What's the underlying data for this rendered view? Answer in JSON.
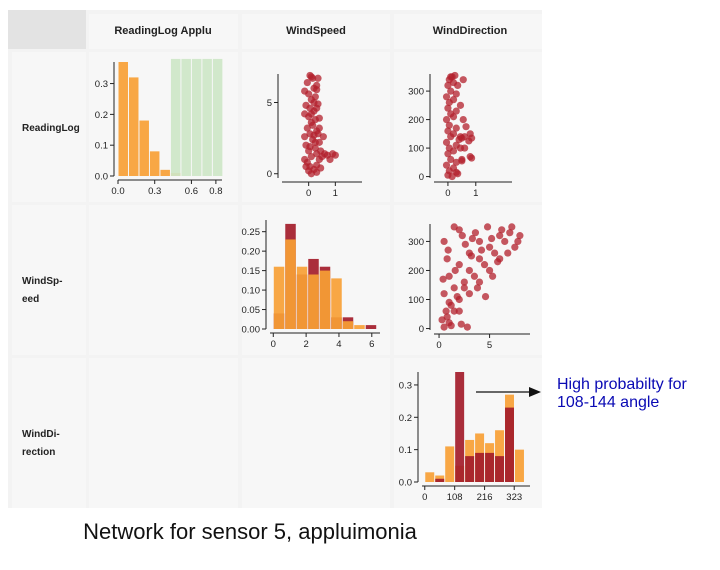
{
  "headers": {
    "columns": [
      "ReadingLog Applu",
      "WindSpeed",
      "WindDirection"
    ],
    "rows": [
      {
        "lines": [
          "ReadingLog"
        ]
      },
      {
        "lines": [
          "WindSp-",
          "eed"
        ]
      },
      {
        "lines": [
          "WindDi-",
          "rection"
        ]
      }
    ]
  },
  "annotation": {
    "line1": "High probabilty for",
    "line2": "108-144 angle"
  },
  "caption": "Network for sensor 5, appluimonia",
  "colors": {
    "orange": "#f7a035",
    "orange_dark": "#ee8a1c",
    "red": "#a31c2a",
    "green": "#cde6c7",
    "cell_bg": "#f7f7f7",
    "header_bg": "#e3e3e3"
  },
  "chart_data": [
    {
      "type": "bar",
      "row": 0,
      "col": 0,
      "title": "",
      "xlabel": "",
      "ylabel": "",
      "xlim": [
        0,
        0.85
      ],
      "ylim": [
        0,
        0.37
      ],
      "xticks": [
        "0.0",
        "0.3",
        "0.6",
        "0.8"
      ],
      "xtick_values": [
        0,
        0.3,
        0.6,
        0.8
      ],
      "yticks": [
        "0.0",
        "0.1",
        "0.2",
        "0.3"
      ],
      "ytick_values": [
        0,
        0.1,
        0.2,
        0.3
      ],
      "bin_width": 0.0857,
      "series": [
        {
          "name": "",
          "color": "#f7a035",
          "bins": [
            0,
            0.0857,
            0.1714,
            0.2571,
            0.3429,
            0.4286,
            0.5143,
            0.6,
            0.6857,
            0.7714
          ],
          "values": [
            0.37,
            0.32,
            0.18,
            0.08,
            0.02,
            0.01,
            0,
            0,
            0,
            0
          ]
        },
        {
          "name": "",
          "color": "#cde6c7",
          "bins": [
            0.4286,
            0.5143,
            0.6,
            0.6857,
            0.7714
          ],
          "values": [
            0.38,
            0.38,
            0.38,
            0.38,
            0.38
          ]
        }
      ]
    },
    {
      "type": "scatter",
      "row": 0,
      "col": 1,
      "title": "",
      "xlabel": "",
      "ylabel": "",
      "xlim": [
        -1,
        2
      ],
      "ylim": [
        -0.3,
        7
      ],
      "xticks": [
        "0",
        "1"
      ],
      "xtick_values": [
        0,
        1
      ],
      "yticks": [
        "0",
        "5"
      ],
      "ytick_values": [
        0,
        5
      ],
      "color": "#b3202c",
      "points": [
        [
          0,
          0.2
        ],
        [
          0.05,
          0.5
        ],
        [
          -0.05,
          0.8
        ],
        [
          0.1,
          1.2
        ],
        [
          0,
          1.6
        ],
        [
          -0.1,
          2
        ],
        [
          0.15,
          2.4
        ],
        [
          0.05,
          2.8
        ],
        [
          -0.05,
          3.2
        ],
        [
          0.1,
          3.6
        ],
        [
          0,
          4
        ],
        [
          0.2,
          4.4
        ],
        [
          -0.1,
          4.8
        ],
        [
          0.1,
          5.2
        ],
        [
          0,
          5.6
        ],
        [
          0.2,
          6
        ],
        [
          -0.05,
          6.4
        ],
        [
          0.1,
          6.8
        ],
        [
          0.3,
          0.6
        ],
        [
          0.3,
          1.4
        ],
        [
          0.25,
          2.2
        ],
        [
          0.3,
          3
        ],
        [
          0.25,
          3.8
        ],
        [
          0.3,
          4.6
        ],
        [
          0.25,
          5.4
        ],
        [
          0.3,
          6.2
        ],
        [
          -0.15,
          1
        ],
        [
          -0.15,
          2.6
        ],
        [
          -0.15,
          4.2
        ],
        [
          -0.15,
          5.8
        ],
        [
          0.4,
          1
        ],
        [
          0.45,
          1.6
        ],
        [
          0.4,
          2.2
        ],
        [
          0.5,
          1.2
        ],
        [
          0.6,
          1.4
        ],
        [
          0.7,
          1.3
        ],
        [
          0.9,
          1.4
        ],
        [
          1.0,
          1.3
        ],
        [
          0.8,
          1
        ],
        [
          0.55,
          2.6
        ],
        [
          0.4,
          3.2
        ],
        [
          0.35,
          6.7
        ],
        [
          0.15,
          6.7
        ],
        [
          0.05,
          6.9
        ],
        [
          0.4,
          3.9
        ],
        [
          0.35,
          4.9
        ],
        [
          0.45,
          0.4
        ],
        [
          0.2,
          0.3
        ],
        [
          0.1,
          0
        ],
        [
          0.3,
          0.1
        ],
        [
          0.15,
          3.4
        ],
        [
          0.2,
          5
        ],
        [
          0.05,
          4.6
        ],
        [
          0.25,
          1.8
        ],
        [
          -0.1,
          0.5
        ],
        [
          0.35,
          2.8
        ],
        [
          0.05,
          1.9
        ],
        [
          0.2,
          2.7
        ],
        [
          0.1,
          4.2
        ],
        [
          0.3,
          5.9
        ]
      ]
    },
    {
      "type": "scatter",
      "row": 0,
      "col": 2,
      "title": "",
      "xlabel": "",
      "ylabel": "",
      "xlim": [
        -0.5,
        2.3
      ],
      "ylim": [
        -5,
        360
      ],
      "xticks": [
        "0",
        "1"
      ],
      "xtick_values": [
        0,
        1
      ],
      "yticks": [
        "0",
        "100",
        "200",
        "300"
      ],
      "ytick_values": [
        0,
        100,
        200,
        300
      ],
      "color": "#b3202c",
      "points": [
        [
          0,
          5
        ],
        [
          0.05,
          20
        ],
        [
          -0.05,
          40
        ],
        [
          0.1,
          60
        ],
        [
          0,
          80
        ],
        [
          0.05,
          100
        ],
        [
          -0.05,
          120
        ],
        [
          0.1,
          140
        ],
        [
          0,
          160
        ],
        [
          0.05,
          180
        ],
        [
          -0.05,
          200
        ],
        [
          0.1,
          220
        ],
        [
          0,
          240
        ],
        [
          0.05,
          260
        ],
        [
          -0.05,
          280
        ],
        [
          0.1,
          300
        ],
        [
          0,
          320
        ],
        [
          0.05,
          340
        ],
        [
          0.15,
          350
        ],
        [
          0.2,
          30
        ],
        [
          0.2,
          90
        ],
        [
          0.2,
          150
        ],
        [
          0.2,
          210
        ],
        [
          0.2,
          270
        ],
        [
          0.2,
          330
        ],
        [
          0.3,
          50
        ],
        [
          0.3,
          110
        ],
        [
          0.3,
          170
        ],
        [
          0.3,
          230
        ],
        [
          0.3,
          290
        ],
        [
          0.35,
          10
        ],
        [
          0.4,
          130
        ],
        [
          0.45,
          140
        ],
        [
          0.5,
          135
        ],
        [
          0.6,
          140
        ],
        [
          0.75,
          125
        ],
        [
          0.8,
          150
        ],
        [
          0.85,
          135
        ],
        [
          0.5,
          60
        ],
        [
          0.45,
          100
        ],
        [
          0.35,
          320
        ],
        [
          0.45,
          250
        ],
        [
          0.55,
          200
        ],
        [
          0.25,
          355
        ],
        [
          0.1,
          350
        ],
        [
          0.3,
          15
        ],
        [
          0.15,
          0
        ],
        [
          0.6,
          100
        ],
        [
          0.65,
          175
        ],
        [
          0.55,
          340
        ],
        [
          0.5,
          55
        ],
        [
          0.8,
          70
        ],
        [
          0.85,
          65
        ]
      ]
    },
    {
      "type": "bar",
      "row": 1,
      "col": 1,
      "title": "",
      "xlabel": "",
      "ylabel": "",
      "xlim": [
        -0.2,
        6.5
      ],
      "ylim": [
        0,
        0.28
      ],
      "xticks": [
        "0",
        "2",
        "4",
        "6"
      ],
      "xtick_values": [
        0,
        2,
        4,
        6
      ],
      "yticks": [
        "0.00",
        "0.05",
        "0.10",
        "0.15",
        "0.20",
        "0.25"
      ],
      "ytick_values": [
        0,
        0.05,
        0.1,
        0.15,
        0.2,
        0.25
      ],
      "bin_width": 0.7,
      "series": [
        {
          "name": "",
          "color": "#a31c2a",
          "bins": [
            0,
            0.7,
            1.4,
            2.1,
            2.8,
            3.5,
            4.2,
            4.9,
            5.6
          ],
          "values": [
            0.04,
            0.27,
            0.14,
            0.18,
            0.16,
            0.03,
            0.03,
            0,
            0.01
          ]
        },
        {
          "name": "",
          "color": "#f7a035",
          "bins": [
            0,
            0.7,
            1.4,
            2.1,
            2.8,
            3.5,
            4.2,
            4.9,
            5.6
          ],
          "values": [
            0.16,
            0.23,
            0.16,
            0.14,
            0.15,
            0.13,
            0.02,
            0.01,
            0
          ]
        }
      ]
    },
    {
      "type": "scatter",
      "row": 1,
      "col": 2,
      "title": "",
      "xlabel": "",
      "ylabel": "",
      "xlim": [
        -0.5,
        9
      ],
      "ylim": [
        -5,
        360
      ],
      "xticks": [
        "0",
        "5"
      ],
      "xtick_values": [
        0,
        5
      ],
      "yticks": [
        "0",
        "100",
        "200",
        "300"
      ],
      "ytick_values": [
        0,
        100,
        200,
        300
      ],
      "color": "#b3202c",
      "points": [
        [
          0.5,
          5
        ],
        [
          1,
          20
        ],
        [
          0.8,
          40
        ],
        [
          1.5,
          60
        ],
        [
          1.2,
          80
        ],
        [
          2,
          100
        ],
        [
          0.5,
          120
        ],
        [
          1.5,
          140
        ],
        [
          2.5,
          160
        ],
        [
          1,
          180
        ],
        [
          3,
          200
        ],
        [
          2,
          220
        ],
        [
          4,
          240
        ],
        [
          3,
          260
        ],
        [
          5,
          280
        ],
        [
          4,
          300
        ],
        [
          6,
          320
        ],
        [
          2,
          340
        ],
        [
          7,
          330
        ],
        [
          8,
          320
        ],
        [
          6.5,
          300
        ],
        [
          7.5,
          280
        ],
        [
          5.5,
          260
        ],
        [
          6,
          240
        ],
        [
          4.5,
          220
        ],
        [
          5,
          200
        ],
        [
          3.5,
          180
        ],
        [
          4,
          160
        ],
        [
          2.5,
          140
        ],
        [
          3,
          120
        ],
        [
          1.8,
          110
        ],
        [
          0.7,
          60
        ],
        [
          0.3,
          30
        ],
        [
          1.2,
          10
        ],
        [
          2.2,
          15
        ],
        [
          2.8,
          5
        ],
        [
          3.2,
          250
        ],
        [
          4.2,
          270
        ],
        [
          5.2,
          310
        ],
        [
          6.2,
          340
        ],
        [
          7.2,
          350
        ],
        [
          1.5,
          350
        ],
        [
          0.5,
          300
        ],
        [
          0.8,
          240
        ],
        [
          1.6,
          200
        ],
        [
          2.6,
          290
        ],
        [
          3.6,
          330
        ],
        [
          4.8,
          350
        ],
        [
          5.8,
          230
        ],
        [
          5.3,
          180
        ],
        [
          6.8,
          260
        ],
        [
          7.8,
          300
        ],
        [
          3.8,
          140
        ],
        [
          4.6,
          110
        ],
        [
          2,
          60
        ],
        [
          1,
          90
        ],
        [
          0.4,
          170
        ],
        [
          0.9,
          270
        ],
        [
          2.3,
          320
        ],
        [
          3.3,
          310
        ]
      ]
    },
    {
      "type": "bar",
      "row": 2,
      "col": 2,
      "title": "",
      "xlabel": "",
      "ylabel": "",
      "xlim": [
        -10,
        380
      ],
      "ylim": [
        0,
        0.34
      ],
      "xticks": [
        "0",
        "108",
        "216",
        "323"
      ],
      "xtick_values": [
        0,
        108,
        216,
        323
      ],
      "yticks": [
        "0.0",
        "0.1",
        "0.2",
        "0.3"
      ],
      "ytick_values": [
        0,
        0.1,
        0.2,
        0.3
      ],
      "bin_width": 36,
      "series": [
        {
          "name": "",
          "color": "#f7a035",
          "bins": [
            0,
            36,
            72,
            108,
            144,
            180,
            216,
            252,
            288,
            324
          ],
          "values": [
            0.03,
            0.02,
            0.11,
            0.05,
            0.13,
            0.15,
            0.12,
            0.16,
            0.27,
            0.1
          ]
        },
        {
          "name": "",
          "color": "#a31c2a",
          "bins": [
            0,
            36,
            72,
            108,
            144,
            180,
            216,
            252,
            288,
            324
          ],
          "values": [
            0,
            0.01,
            0,
            0.34,
            0.08,
            0.09,
            0.09,
            0.08,
            0.23,
            0
          ]
        }
      ]
    }
  ]
}
